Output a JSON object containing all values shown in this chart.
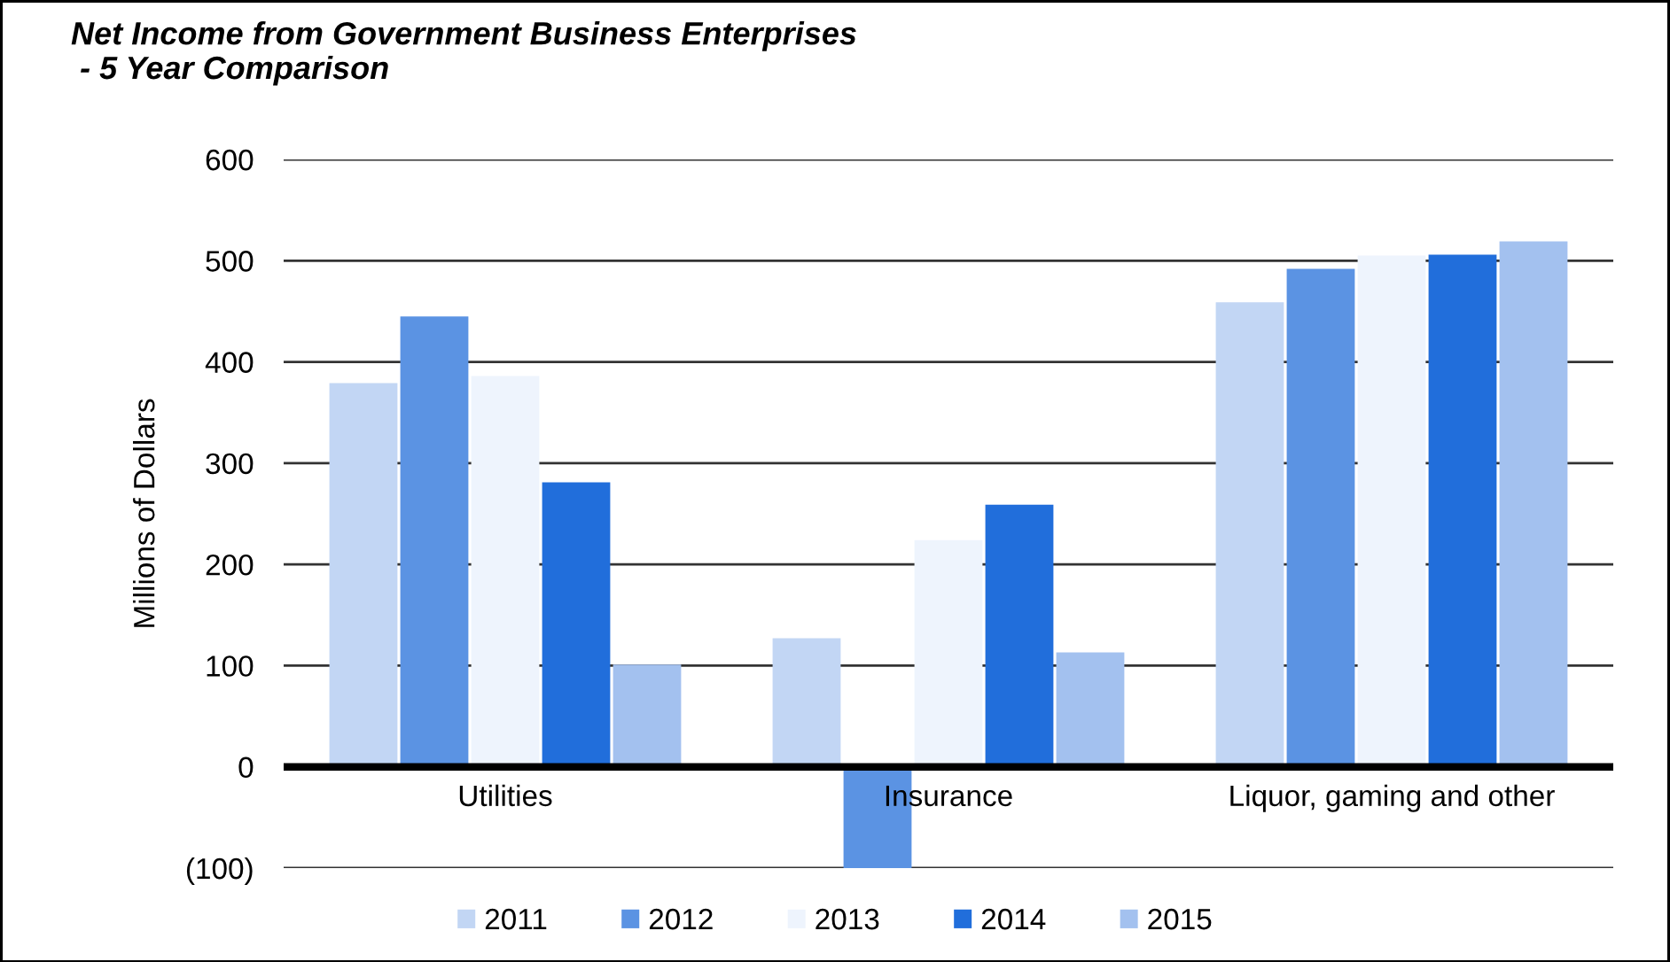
{
  "chart_data": {
    "type": "bar",
    "title": "Net Income from Government Business Enterprises\n - 5 Year Comparison",
    "ylabel": "Millions of Dollars",
    "categories": [
      "Utilities",
      "Insurance",
      "Liquor, gaming and other"
    ],
    "series": [
      {
        "name": "2011",
        "color": "#c2d6f4",
        "values": [
          379,
          127,
          459
        ]
      },
      {
        "name": "2012",
        "color": "#5b93e3",
        "values": [
          445,
          -100,
          492
        ]
      },
      {
        "name": "2013",
        "color": "#eef4fd",
        "values": [
          386,
          224,
          505
        ]
      },
      {
        "name": "2014",
        "color": "#216edb",
        "values": [
          281,
          259,
          506
        ]
      },
      {
        "name": "2015",
        "color": "#a3c1ef",
        "values": [
          101,
          113,
          519
        ]
      }
    ],
    "ylim": [
      -100,
      600
    ],
    "yticks": [
      {
        "value": -100,
        "label": "(100)"
      },
      0,
      100,
      200,
      300,
      400,
      500,
      600
    ],
    "grid": "y",
    "legend": "bottom"
  }
}
